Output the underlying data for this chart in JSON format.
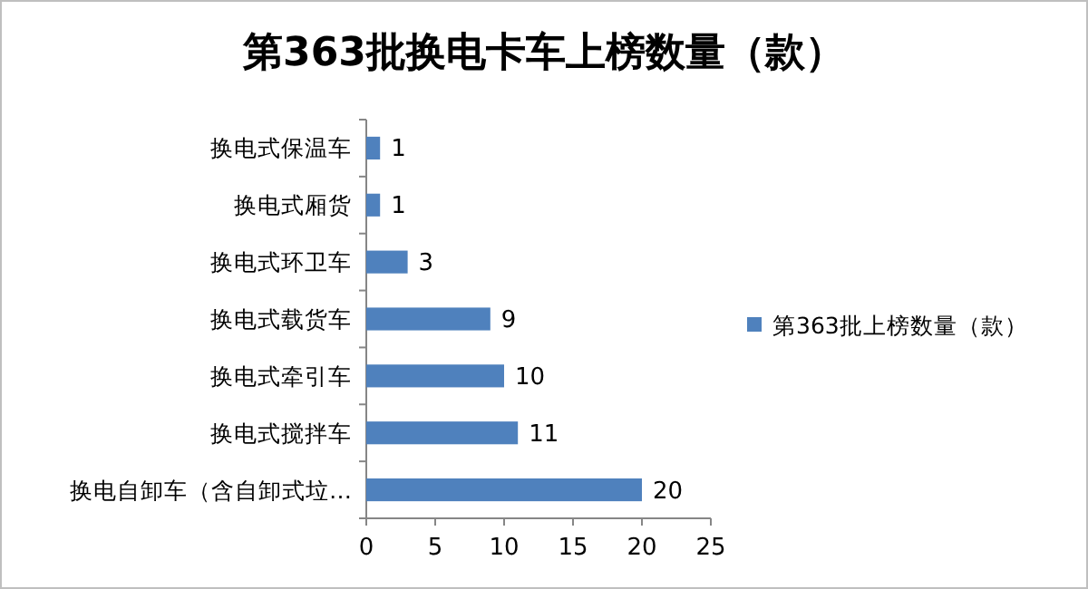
{
  "chart_data": {
    "type": "bar",
    "orientation": "horizontal",
    "title": "第363批换电卡车上榜数量（款）",
    "categories": [
      "换电式保温车",
      "换电式厢货",
      "换电式环卫车",
      "换电式载货车",
      "换电式牵引车",
      "换电式搅拌车",
      "换电自卸车（含自卸式垃…"
    ],
    "series": [
      {
        "name": "第363批上榜数量（款）",
        "color": "#4f81bd",
        "values": [
          1,
          1,
          3,
          9,
          10,
          11,
          20
        ]
      }
    ],
    "xlim": [
      0,
      25
    ],
    "xticks": [
      0,
      5,
      10,
      15,
      20,
      25
    ],
    "data_labels": true,
    "legend": "right"
  }
}
